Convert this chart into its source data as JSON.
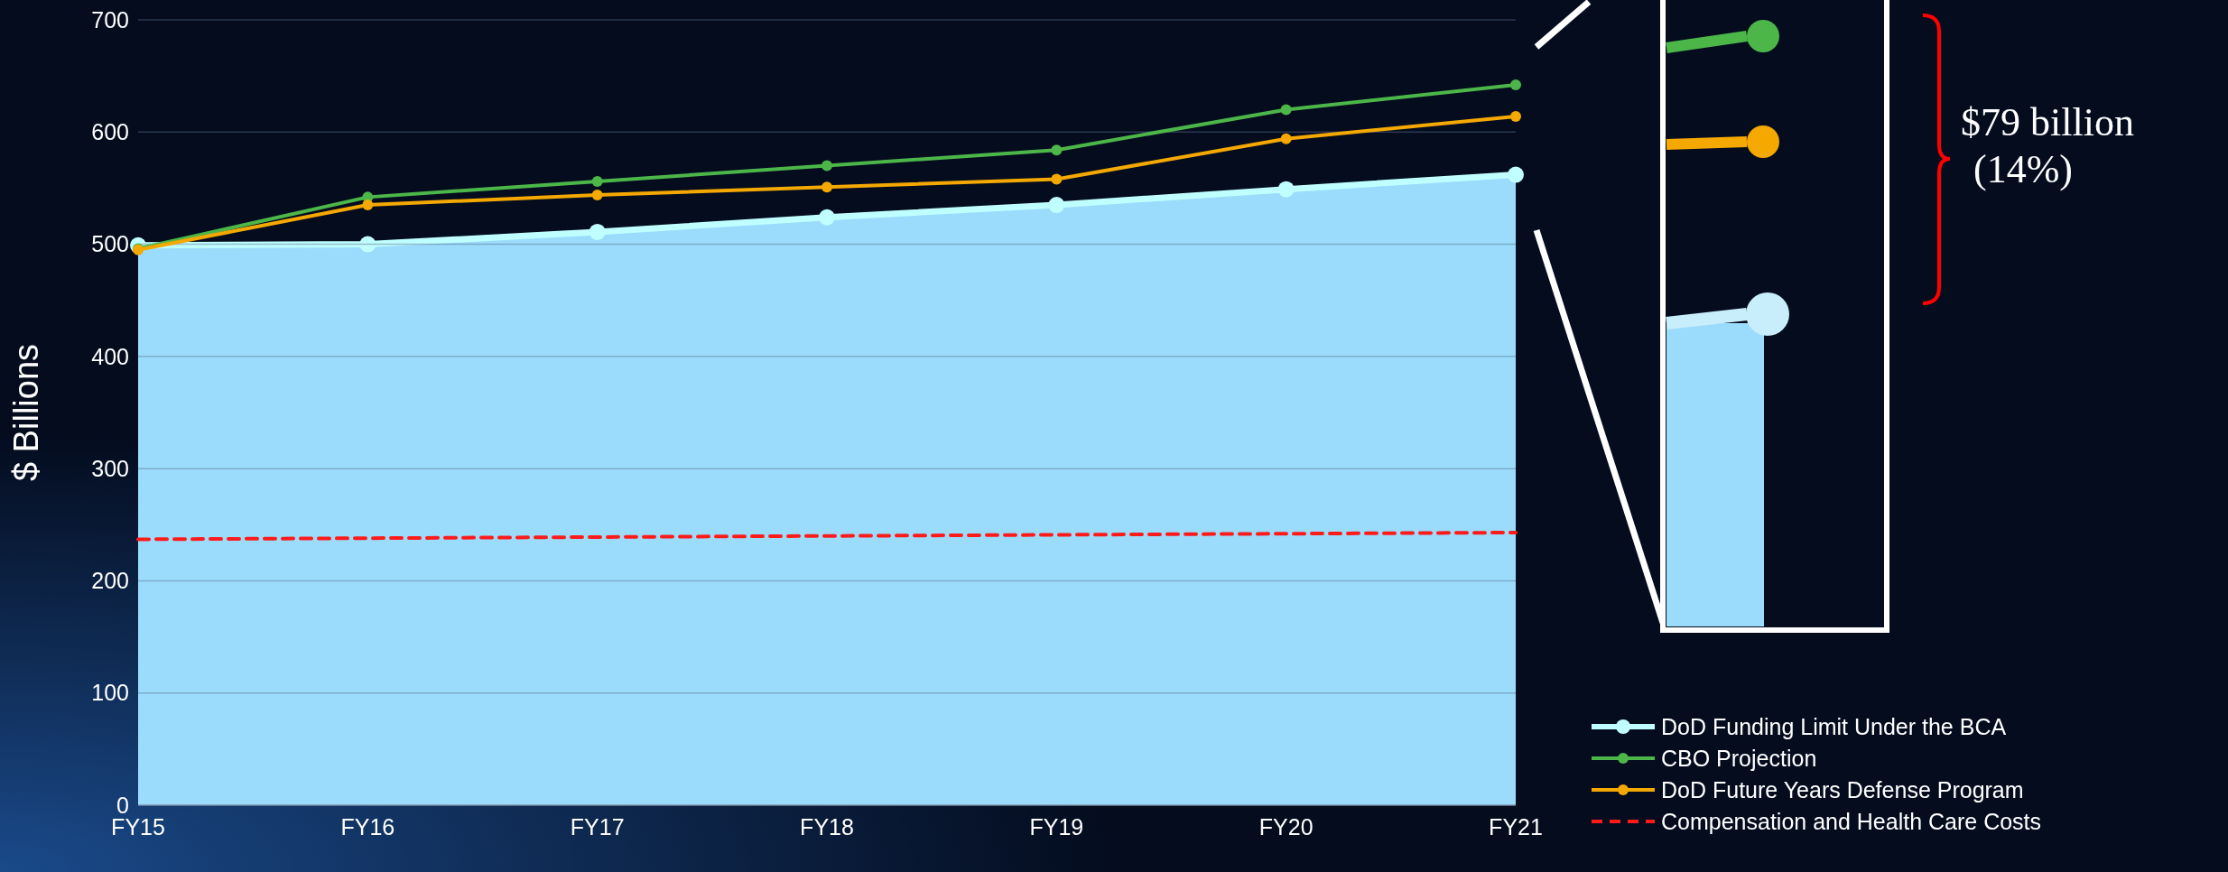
{
  "chart_data": {
    "type": "line",
    "ylabel": "$ Billions",
    "categories": [
      "FY15",
      "FY16",
      "FY17",
      "FY18",
      "FY19",
      "FY20",
      "FY21"
    ],
    "ylim": [
      0,
      700
    ],
    "yticks": [
      0,
      100,
      200,
      300,
      400,
      500,
      600,
      700
    ],
    "grid": "y",
    "legend": "bottom right",
    "marker": "circle",
    "series": [
      {
        "name": "DoD Funding Limit Under the BCA",
        "type": "area",
        "color": "#9bdcfc",
        "values": [
          499,
          500,
          511,
          524,
          535,
          549,
          562
        ]
      },
      {
        "name": "CBO Projection",
        "color": "#4cb649",
        "values": [
          496,
          542,
          556,
          570,
          584,
          620,
          642
        ]
      },
      {
        "name": "DoD Future Years Defense Program",
        "color": "#f5a800",
        "values": [
          495,
          535,
          544,
          551,
          558,
          594,
          614
        ]
      },
      {
        "name": "Compensation and Health Care Costs",
        "color": "#ff1a1a",
        "line_style": "dashed",
        "marker": "none",
        "values": [
          237,
          238,
          239,
          240,
          241,
          242,
          243
        ]
      }
    ],
    "annotations": [
      "$79 billion\n(14%)"
    ]
  }
}
